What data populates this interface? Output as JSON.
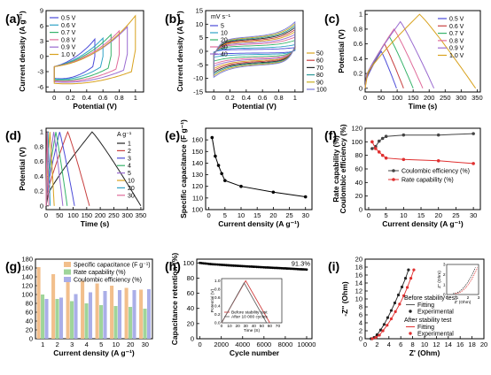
{
  "chart_data": [
    {
      "id": "a",
      "panel_label": "(a)",
      "type": "line",
      "xlabel": "Potential (V)",
      "ylabel": "Current density (A g⁻¹)",
      "xlim": [
        -0.1,
        1.1
      ],
      "ylim": [
        -7,
        9
      ],
      "xticks": [
        0.0,
        0.2,
        0.4,
        0.6,
        0.8,
        1.0
      ],
      "yticks": [
        -6,
        -3,
        0,
        3,
        6,
        9
      ],
      "legend": "top-left",
      "series": [
        {
          "name": "0.5 V",
          "color": "#4b4bd8",
          "vmax": 0.5,
          "top": 3.4,
          "bottom": -4.3
        },
        {
          "name": "0.6 V",
          "color": "#2fa3c6",
          "vmax": 0.6,
          "top": 3.6,
          "bottom": -4.4
        },
        {
          "name": "0.7 V",
          "color": "#36b36a",
          "vmax": 0.7,
          "top": 4.3,
          "bottom": -4.6
        },
        {
          "name": "0.8 V",
          "color": "#e06b9a",
          "vmax": 0.8,
          "top": 5.0,
          "bottom": -4.8
        },
        {
          "name": "0.9 V",
          "color": "#9a6bd0",
          "vmax": 0.9,
          "top": 5.8,
          "bottom": -5.0
        },
        {
          "name": "1.0 V",
          "color": "#d8a21e",
          "vmax": 1.0,
          "top": 8.0,
          "bottom": -5.3
        }
      ]
    },
    {
      "id": "b",
      "panel_label": "(b)",
      "type": "line",
      "xlabel": "Potential (V)",
      "ylabel": "Current density (A g⁻¹)",
      "xlim": [
        -0.1,
        1.1
      ],
      "ylim": [
        -15,
        15
      ],
      "xticks": [
        0.0,
        0.2,
        0.4,
        0.6,
        0.8,
        1.0
      ],
      "yticks": [
        -15,
        -10,
        -5,
        0,
        5,
        10,
        15
      ],
      "legend_title": "mV s⁻¹",
      "legend_left": [
        "5",
        "10",
        "20",
        "30",
        "40"
      ],
      "legend_right": [
        "50",
        "60",
        "70",
        "80",
        "90",
        "100"
      ],
      "series": [
        {
          "name": "5",
          "color": "#4b4bd8",
          "amp": 1.0
        },
        {
          "name": "10",
          "color": "#2fa3c6",
          "amp": 1.8
        },
        {
          "name": "20",
          "color": "#36b36a",
          "amp": 3.0
        },
        {
          "name": "30",
          "color": "#e06b9a",
          "amp": 3.9
        },
        {
          "name": "40",
          "color": "#9a6bd0",
          "amp": 4.6
        },
        {
          "name": "50",
          "color": "#d8a21e",
          "amp": 5.3
        },
        {
          "name": "60",
          "color": "#c84040",
          "amp": 5.9
        },
        {
          "name": "70",
          "color": "#2a2a2a",
          "amp": 6.5
        },
        {
          "name": "80",
          "color": "#2f9a9a",
          "amp": 7.0
        },
        {
          "name": "90",
          "color": "#c8b020",
          "amp": 7.5
        },
        {
          "name": "100",
          "color": "#7a7ad8",
          "amp": 8.0
        }
      ]
    },
    {
      "id": "c",
      "panel_label": "(c)",
      "type": "line",
      "xlabel": "Time (s)",
      "ylabel": "Potential (V)",
      "xlim": [
        0,
        360
      ],
      "ylim": [
        -0.05,
        1.05
      ],
      "xticks": [
        0,
        50,
        100,
        150,
        200,
        250,
        300,
        350
      ],
      "yticks": [
        0.0,
        0.2,
        0.4,
        0.6,
        0.8,
        1.0
      ],
      "legend": "top-right",
      "series": [
        {
          "name": "0.5 V",
          "color": "#4b4bd8",
          "vmax": 0.5,
          "tc": 50,
          "td": 98
        },
        {
          "name": "0.6 V",
          "color": "#c84040",
          "vmax": 0.6,
          "tc": 60,
          "td": 120
        },
        {
          "name": "0.7 V",
          "color": "#36b36a",
          "vmax": 0.7,
          "tc": 75,
          "td": 150
        },
        {
          "name": "0.8 V",
          "color": "#e06b9a",
          "vmax": 0.8,
          "tc": 90,
          "td": 180
        },
        {
          "name": "0.9 V",
          "color": "#9a6bd0",
          "vmax": 0.9,
          "tc": 110,
          "td": 215
        },
        {
          "name": "1.0 V",
          "color": "#d8a21e",
          "vmax": 1.0,
          "tc": 170,
          "td": 345
        }
      ]
    },
    {
      "id": "d",
      "panel_label": "(d)",
      "type": "line",
      "xlabel": "Time (s)",
      "ylabel": "Potential (V)",
      "xlim": [
        0,
        360
      ],
      "ylim": [
        -0.05,
        1.05
      ],
      "xticks": [
        0,
        50,
        100,
        150,
        200,
        250,
        300,
        350
      ],
      "yticks": [
        0.0,
        0.2,
        0.4,
        0.6,
        0.8,
        1.0
      ],
      "legend_title": "A g⁻¹",
      "series": [
        {
          "name": "1",
          "color": "#222222",
          "tc": 170,
          "td": 350
        },
        {
          "name": "2",
          "color": "#c84040",
          "tc": 80,
          "td": 160
        },
        {
          "name": "3",
          "color": "#4b4bd8",
          "tc": 50,
          "td": 105
        },
        {
          "name": "4",
          "color": "#36b36a",
          "tc": 36,
          "td": 78
        },
        {
          "name": "5",
          "color": "#9a6bd0",
          "tc": 28,
          "td": 62
        },
        {
          "name": "10",
          "color": "#d8a21e",
          "tc": 14,
          "td": 30
        },
        {
          "name": "20",
          "color": "#2fa3c6",
          "tc": 7,
          "td": 15
        },
        {
          "name": "30",
          "color": "#e06b9a",
          "tc": 4,
          "td": 10
        }
      ]
    },
    {
      "id": "e",
      "panel_label": "(e)",
      "type": "line",
      "xlabel": "Current density (A g⁻¹)",
      "ylabel": "Specific capacitance (F g⁻¹)",
      "xlim": [
        -1,
        32
      ],
      "ylim": [
        100,
        170
      ],
      "xticks": [
        0,
        5,
        10,
        15,
        20,
        25,
        30
      ],
      "yticks": [
        100,
        110,
        120,
        130,
        140,
        150,
        160
      ],
      "series": [
        {
          "name": "",
          "color": "#000000",
          "x": [
            1,
            2,
            3,
            4,
            5,
            10,
            20,
            30
          ],
          "y": [
            162,
            146,
            138,
            131,
            125,
            120,
            115,
            111
          ]
        }
      ]
    },
    {
      "id": "f",
      "panel_label": "(f)",
      "type": "line",
      "xlabel": "Current density (A g⁻¹)",
      "ylabel": "Rate capability (%)",
      "ylabel2": "Coulombic efficiency (%)",
      "xlim": [
        -1,
        32
      ],
      "ylim": [
        0,
        120
      ],
      "xticks": [
        0,
        5,
        10,
        15,
        20,
        25,
        30
      ],
      "yticks": [
        0,
        20,
        40,
        60,
        80,
        100,
        120
      ],
      "legend": "center-right",
      "series": [
        {
          "name": "Coulombic efficiency (%)",
          "color": "#444444",
          "x": [
            1,
            2,
            3,
            4,
            5,
            10,
            20,
            30
          ],
          "y": [
            90,
            93,
            101,
            105,
            108,
            110,
            110,
            112
          ]
        },
        {
          "name": "Rate capability (%)",
          "color": "#e03030",
          "x": [
            1,
            2,
            3,
            4,
            5,
            10,
            20,
            30
          ],
          "y": [
            100,
            90,
            85,
            80,
            76,
            74,
            72,
            68
          ]
        }
      ]
    },
    {
      "id": "g",
      "panel_label": "(g)",
      "type": "bar",
      "xlabel": "Current density (A g⁻¹)",
      "ylim": [
        0,
        180
      ],
      "yticks": [
        0,
        20,
        40,
        60,
        80,
        100,
        120,
        140,
        160,
        180
      ],
      "categories": [
        "1",
        "2",
        "3",
        "4",
        "5",
        "10",
        "20",
        "30"
      ],
      "legend": "top-right",
      "series": [
        {
          "name": "Specific capacitance (F g⁻¹)",
          "color": "#f2bf8c",
          "values": [
            162,
            146,
            138,
            131,
            125,
            120,
            115,
            111
          ]
        },
        {
          "name": "Rate capability (%)",
          "color": "#9fd59a",
          "values": [
            100,
            90,
            85,
            80,
            76,
            74,
            72,
            68
          ]
        },
        {
          "name": "Coulombic efficiency (%)",
          "color": "#aaaee8",
          "values": [
            90,
            93,
            101,
            105,
            108,
            110,
            110,
            112
          ]
        }
      ]
    },
    {
      "id": "h",
      "panel_label": "(h)",
      "type": "scatter",
      "xlabel": "Cycle number",
      "ylabel": "Capacitance retention (%)",
      "xlim": [
        -300,
        10500
      ],
      "ylim": [
        0,
        105
      ],
      "xticks": [
        0,
        2000,
        4000,
        6000,
        8000,
        10000
      ],
      "yticks": [
        0,
        20,
        40,
        60,
        80,
        100
      ],
      "annotation": "91.3%",
      "series": [
        {
          "name": "",
          "color": "#000000",
          "x": [
            0,
            1000,
            2000,
            3000,
            4000,
            5000,
            6000,
            7000,
            8000,
            9000,
            10000
          ],
          "y": [
            100,
            98.5,
            97.5,
            96.6,
            95.8,
            95.0,
            94.2,
            93.5,
            92.8,
            92.0,
            91.3
          ]
        }
      ],
      "inset": {
        "xlabel": "Time (S)",
        "ylabel": "Potential (V)",
        "xlim": [
          0,
          75
        ],
        "ylim": [
          0,
          1.05
        ],
        "xticks": [
          0,
          10,
          20,
          30,
          40,
          50,
          60,
          70
        ],
        "yticks": [
          0.0,
          0.2,
          0.4,
          0.6,
          0.8,
          1.0
        ],
        "series": [
          {
            "name": "Before stability test",
            "color": "#d04040",
            "x": [
              0,
              30,
              60
            ],
            "y": [
              0,
              1.0,
              0
            ]
          },
          {
            "name": "After 10 000 cycles",
            "color": "#666666",
            "x": [
              0,
              28,
              56
            ],
            "y": [
              0,
              0.95,
              0
            ]
          }
        ]
      }
    },
    {
      "id": "i",
      "panel_label": "(i)",
      "type": "scatter",
      "xlabel": "Z' (Ohm)",
      "ylabel": "-Z'' (Ohm)",
      "xlim": [
        0,
        20
      ],
      "ylim": [
        0,
        20
      ],
      "xticks": [
        0,
        2,
        4,
        6,
        8,
        10,
        12,
        14,
        16,
        18,
        20
      ],
      "yticks": [
        0,
        2,
        4,
        6,
        8,
        10,
        12,
        14,
        16,
        18,
        20
      ],
      "legend_groups": [
        {
          "title": "Before stability test",
          "items": [
            {
              "name": "Fitting",
              "color": "#555555",
              "kind": "line"
            },
            {
              "name": "Experimental",
              "color": "#222222",
              "kind": "dot"
            }
          ]
        },
        {
          "title": "After stability test",
          "items": [
            {
              "name": "Fitting",
              "color": "#e03030",
              "kind": "line"
            },
            {
              "name": "Experimental",
              "color": "#e03030",
              "kind": "dot"
            }
          ]
        }
      ],
      "series": [
        {
          "name": "Before stability test",
          "color": "#222222",
          "x": [
            1.0,
            1.5,
            2.0,
            2.6,
            3.2,
            3.8,
            4.4,
            5.0,
            5.6,
            6.2,
            6.8,
            7.3
          ],
          "y": [
            0.0,
            0.3,
            1.0,
            2.2,
            3.6,
            5.3,
            7.1,
            9.0,
            11.0,
            13.0,
            15.2,
            17.3
          ]
        },
        {
          "name": "After stability test",
          "color": "#e03030",
          "x": [
            1.2,
            1.8,
            2.4,
            3.0,
            3.7,
            4.4,
            5.1,
            5.8,
            6.5,
            7.1,
            7.7,
            8.2
          ],
          "y": [
            0.0,
            0.3,
            0.9,
            2.0,
            3.4,
            5.0,
            6.8,
            8.7,
            10.8,
            12.9,
            15.2,
            17.3
          ]
        }
      ],
      "inset": {
        "xlabel": "Z' (Ohm)",
        "ylabel": "Z'' (Ohm)",
        "xlim": [
          0,
          3
        ],
        "ylim": [
          0,
          3
        ],
        "xticks": [
          0,
          1,
          2,
          3
        ],
        "yticks": [
          0,
          1,
          2,
          3
        ]
      }
    }
  ]
}
